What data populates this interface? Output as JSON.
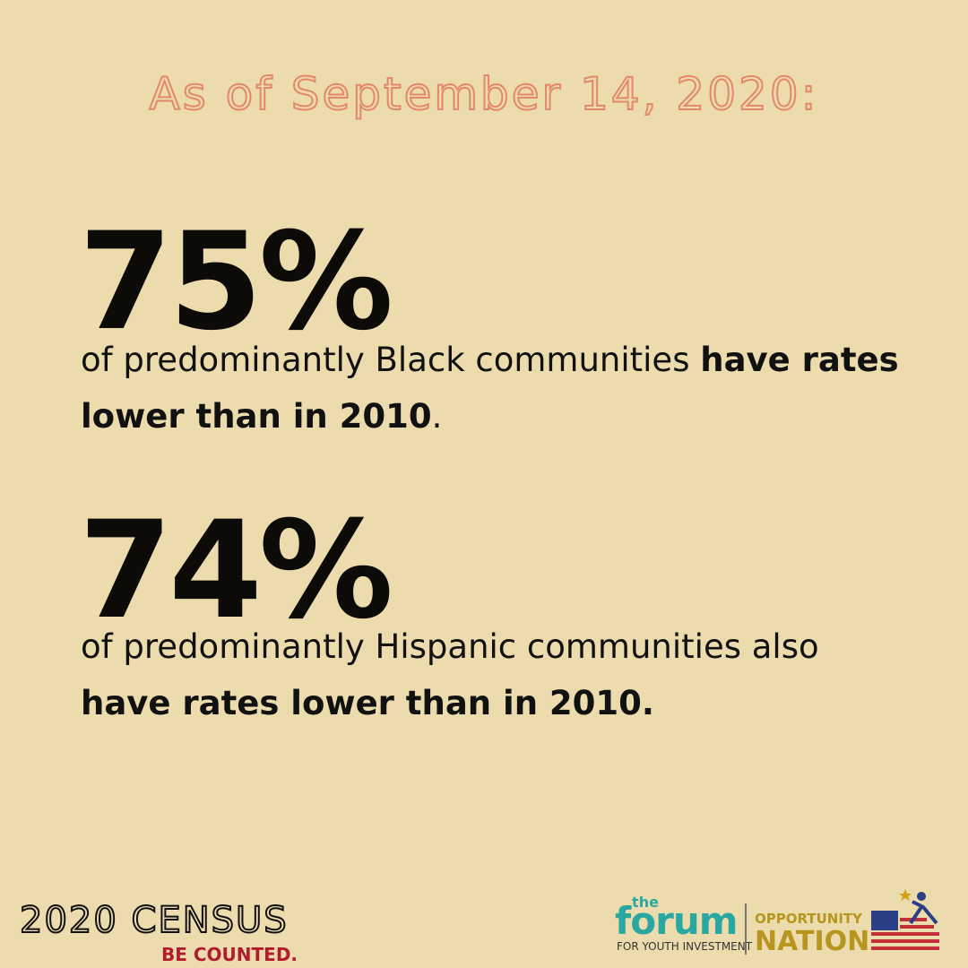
{
  "header": {
    "title": "As of September 14, 2020:"
  },
  "stats": [
    {
      "figure": "75%",
      "text": "of predominantly Black communities ",
      "emphasis": "have rates lower than in 2010",
      "end": "."
    },
    {
      "figure": "74%",
      "text": "of predominantly Hispanic communities also ",
      "emphasis": "have rates lower than in 2010."
    }
  ],
  "footer": {
    "census": "2020 CENSUS",
    "tagline": "BE COUNTED.",
    "forum": {
      "small": "the",
      "name": "forum",
      "sub": "FOR YOUTH INVESTMENT"
    },
    "opportunity": {
      "top": "OPPORTUNITY",
      "bottom": "NATION"
    }
  }
}
